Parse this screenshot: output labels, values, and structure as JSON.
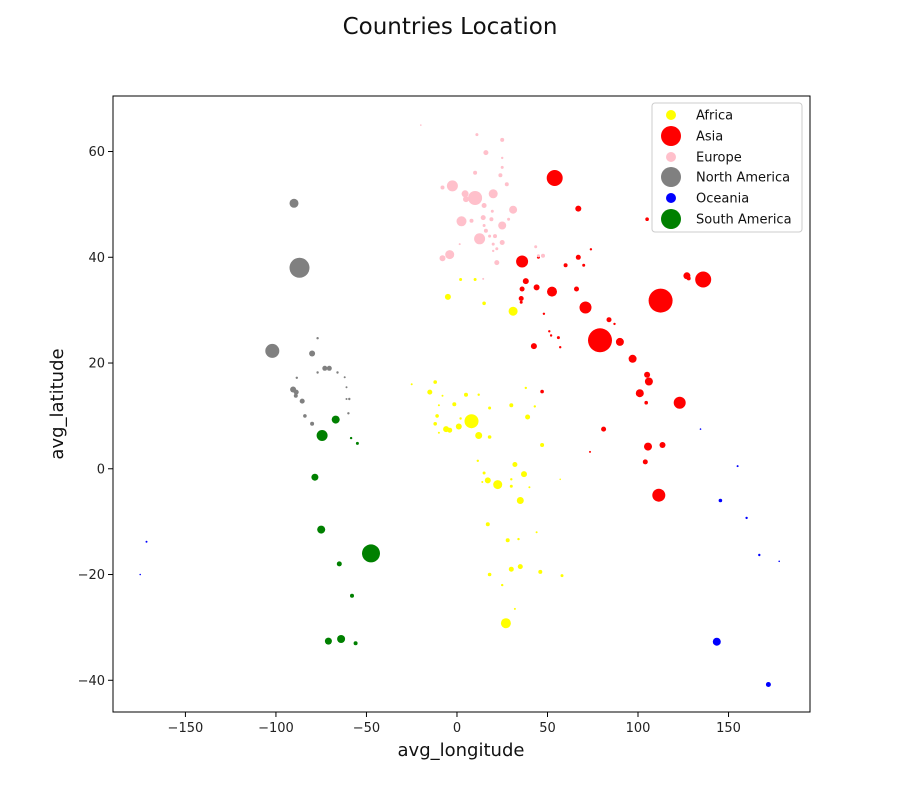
{
  "chart_data": {
    "type": "scatter",
    "title": "Countries Location",
    "xlabel": "avg_longitude",
    "ylabel": "avg_latitude",
    "xlim": [
      -190,
      195
    ],
    "ylim": [
      -46,
      70.5
    ],
    "x_ticks": [
      -150,
      -100,
      -50,
      0,
      50,
      100,
      150
    ],
    "y_ticks": [
      -40,
      -20,
      0,
      20,
      40,
      60
    ],
    "grid": false,
    "legend_position": "top-right",
    "series": [
      {
        "name": "Africa",
        "color": "#ffff00",
        "legend_size": 5,
        "points": [
          [
            -5,
            32.5,
            3
          ],
          [
            2,
            35.8,
            1.5
          ],
          [
            10,
            35.8,
            1.5
          ],
          [
            15,
            31.3,
            1.8
          ],
          [
            31,
            29.8,
            4.5
          ],
          [
            -25,
            16,
            1
          ],
          [
            -15,
            14.5,
            2.5
          ],
          [
            -12,
            16.4,
            1.8
          ],
          [
            -10,
            12,
            1
          ],
          [
            -11,
            10,
            1.8
          ],
          [
            -12,
            8.5,
            1.8
          ],
          [
            -10,
            6.8,
            1
          ],
          [
            -8,
            13.8,
            1
          ],
          [
            -6,
            7.5,
            3
          ],
          [
            -4,
            7.3,
            2.5
          ],
          [
            -1.5,
            12.2,
            2
          ],
          [
            1,
            8,
            3
          ],
          [
            2,
            9.5,
            1.2
          ],
          [
            5,
            14,
            2
          ],
          [
            8,
            9,
            7
          ],
          [
            12,
            6.3,
            3.5
          ],
          [
            12,
            14,
            1.2
          ],
          [
            18,
            11.5,
            1.5
          ],
          [
            18,
            6,
            1.8
          ],
          [
            30,
            12,
            2
          ],
          [
            38,
            15.3,
            1.2
          ],
          [
            39,
            9.8,
            2.5
          ],
          [
            43,
            11.8,
            1.2
          ],
          [
            47,
            4.5,
            2
          ],
          [
            11.5,
            1.5,
            1.2
          ],
          [
            15,
            -0.8,
            1.5
          ],
          [
            14,
            -2.5,
            1
          ],
          [
            17,
            -2.2,
            3
          ],
          [
            22.5,
            -3,
            4.5
          ],
          [
            30,
            -2,
            1.2
          ],
          [
            30,
            -3.3,
            1.5
          ],
          [
            32,
            0.8,
            2.5
          ],
          [
            35,
            -6,
            3.5
          ],
          [
            37,
            -1,
            3
          ],
          [
            40,
            -3.5,
            1
          ],
          [
            44,
            -12,
            1
          ],
          [
            17,
            -10.5,
            2
          ],
          [
            28,
            -13.5,
            2
          ],
          [
            34,
            -13.3,
            1.2
          ],
          [
            30,
            -19,
            2.5
          ],
          [
            35,
            -18.5,
            2.5
          ],
          [
            46,
            -19.5,
            2
          ],
          [
            18,
            -20,
            1.8
          ],
          [
            25,
            -22,
            1.2
          ],
          [
            32,
            -26.5,
            1
          ],
          [
            58,
            -20.2,
            1.5
          ],
          [
            27,
            -29.2,
            5
          ],
          [
            57,
            -2,
            0.8
          ]
        ]
      },
      {
        "name": "Asia",
        "color": "#ff0000",
        "legend_size": 10,
        "points": [
          [
            54,
            55,
            8
          ],
          [
            67,
            49.2,
            3
          ],
          [
            36,
            39.2,
            6
          ],
          [
            45,
            40,
            1.5
          ],
          [
            60,
            38.5,
            2
          ],
          [
            67,
            40,
            2.5
          ],
          [
            70,
            38.5,
            1.5
          ],
          [
            74,
            41.5,
            1.2
          ],
          [
            38,
            35.5,
            3
          ],
          [
            36,
            34,
            2.5
          ],
          [
            35.5,
            32.2,
            2.5
          ],
          [
            35.5,
            31.5,
            1.5
          ],
          [
            44,
            34.3,
            3
          ],
          [
            52.5,
            33.5,
            5
          ],
          [
            66,
            34,
            2.5
          ],
          [
            71,
            30.5,
            6
          ],
          [
            42.5,
            23.2,
            3
          ],
          [
            51,
            26,
            1.2
          ],
          [
            52,
            25.2,
            1.2
          ],
          [
            56,
            24.8,
            1.5
          ],
          [
            57,
            23,
            1.2
          ],
          [
            48,
            29.3,
            1.2
          ],
          [
            47,
            14.6,
            1.8
          ],
          [
            79,
            24.3,
            12
          ],
          [
            84,
            28.2,
            2.5
          ],
          [
            87,
            27.4,
            1.2
          ],
          [
            90,
            24,
            4
          ],
          [
            97,
            20.8,
            4
          ],
          [
            101,
            14.3,
            4
          ],
          [
            105,
            17.8,
            3
          ],
          [
            106,
            16.5,
            4
          ],
          [
            104.5,
            12.5,
            1.8
          ],
          [
            123,
            12.5,
            6
          ],
          [
            81,
            7.5,
            2.5
          ],
          [
            112.5,
            31.8,
            12
          ],
          [
            127,
            36.5,
            3.5
          ],
          [
            128,
            36,
            2
          ],
          [
            136,
            35.8,
            8
          ],
          [
            105,
            47.2,
            1.8
          ],
          [
            113.5,
            4.5,
            3
          ],
          [
            105.5,
            4.2,
            4
          ],
          [
            104,
            1.3,
            2.5
          ],
          [
            111.5,
            -5,
            6.5
          ],
          [
            73.5,
            3.2,
            1
          ]
        ]
      },
      {
        "name": "Europe",
        "color": "#ffc0cb",
        "legend_size": 5,
        "points": [
          [
            -20,
            65,
            0.8
          ],
          [
            11,
            63.2,
            1.5
          ],
          [
            25,
            62.2,
            2
          ],
          [
            16,
            59.8,
            2.5
          ],
          [
            25,
            58.8,
            1.2
          ],
          [
            25,
            57,
            1.5
          ],
          [
            10,
            56,
            2
          ],
          [
            24,
            55.5,
            2
          ],
          [
            27.5,
            53.8,
            2
          ],
          [
            -8,
            53.2,
            2
          ],
          [
            -2.5,
            53.5,
            5.5
          ],
          [
            4.5,
            52,
            3.5
          ],
          [
            5,
            51,
            3
          ],
          [
            10,
            51.2,
            7
          ],
          [
            20,
            52,
            4.5
          ],
          [
            15,
            49.8,
            2.5
          ],
          [
            19.5,
            48.7,
            1.5
          ],
          [
            31,
            49,
            4
          ],
          [
            28.5,
            47.2,
            1.5
          ],
          [
            19,
            47.2,
            2
          ],
          [
            14.5,
            47.5,
            2.5
          ],
          [
            8,
            46.9,
            2
          ],
          [
            2.5,
            46.8,
            5
          ],
          [
            15,
            46,
            1.5
          ],
          [
            16,
            45,
            2
          ],
          [
            25,
            46,
            4
          ],
          [
            12.5,
            43.5,
            5.5
          ],
          [
            18,
            44,
            1.5
          ],
          [
            21,
            44,
            2
          ],
          [
            20,
            42.5,
            1.5
          ],
          [
            20,
            41.2,
            1.2
          ],
          [
            22,
            41.6,
            1.5
          ],
          [
            25,
            42.8,
            2.5
          ],
          [
            22,
            39,
            2.5
          ],
          [
            -4,
            40.5,
            4.5
          ],
          [
            -8,
            39.8,
            3
          ],
          [
            43.5,
            42,
            1.5
          ],
          [
            45,
            40.3,
            1.5
          ],
          [
            47.5,
            40.3,
            2
          ],
          [
            14.5,
            35.9,
            1
          ],
          [
            1.5,
            42.5,
            1
          ]
        ]
      },
      {
        "name": "North America",
        "color": "#808080",
        "legend_size": 10,
        "points": [
          [
            -90,
            50.2,
            4.5
          ],
          [
            -87,
            38,
            10
          ],
          [
            -102,
            22.3,
            7
          ],
          [
            -80,
            21.8,
            3
          ],
          [
            -77,
            24.7,
            1.2
          ],
          [
            -77,
            18.2,
            1.2
          ],
          [
            -73,
            19,
            2.5
          ],
          [
            -70.5,
            19,
            2.5
          ],
          [
            -66,
            18.2,
            1.2
          ],
          [
            -62,
            17.3,
            1
          ],
          [
            -61,
            15.4,
            1
          ],
          [
            -61,
            13.2,
            1
          ],
          [
            -59.5,
            13.2,
            1.2
          ],
          [
            -60,
            10.5,
            1.2
          ],
          [
            -90.5,
            15,
            3
          ],
          [
            -88.5,
            17.2,
            1.2
          ],
          [
            -88.8,
            14.5,
            2.5
          ],
          [
            -89,
            13.8,
            2
          ],
          [
            -85.5,
            12.8,
            2.5
          ],
          [
            -84,
            10,
            1.8
          ],
          [
            -80,
            8.5,
            2
          ]
        ]
      },
      {
        "name": "Oceania",
        "color": "#0000ff",
        "legend_size": 5,
        "points": [
          [
            143.5,
            -32.7,
            4
          ],
          [
            172,
            -40.8,
            2.5
          ],
          [
            145.5,
            -6,
            1.8
          ],
          [
            160,
            -9.3,
            1.2
          ],
          [
            167,
            -16.3,
            1.2
          ],
          [
            178,
            -17.5,
            0.8
          ],
          [
            134.5,
            7.5,
            0.8
          ],
          [
            155,
            0.5,
            1
          ],
          [
            -171.5,
            -13.8,
            1
          ],
          [
            -175,
            -20,
            0.8
          ]
        ]
      },
      {
        "name": "South America",
        "color": "#008000",
        "legend_size": 10,
        "points": [
          [
            -67,
            9.3,
            4
          ],
          [
            -74.5,
            6.3,
            5.5
          ],
          [
            -58.5,
            5.8,
            1.2
          ],
          [
            -55,
            4.8,
            1.5
          ],
          [
            -78.5,
            -1.6,
            3.5
          ],
          [
            -75,
            -11.5,
            4
          ],
          [
            -47.5,
            -16,
            9
          ],
          [
            -65,
            -18,
            2.5
          ],
          [
            -58,
            -24,
            2
          ],
          [
            -64,
            -32.2,
            4
          ],
          [
            -71,
            -32.6,
            3.5
          ],
          [
            -56,
            -33,
            2
          ]
        ]
      }
    ]
  }
}
